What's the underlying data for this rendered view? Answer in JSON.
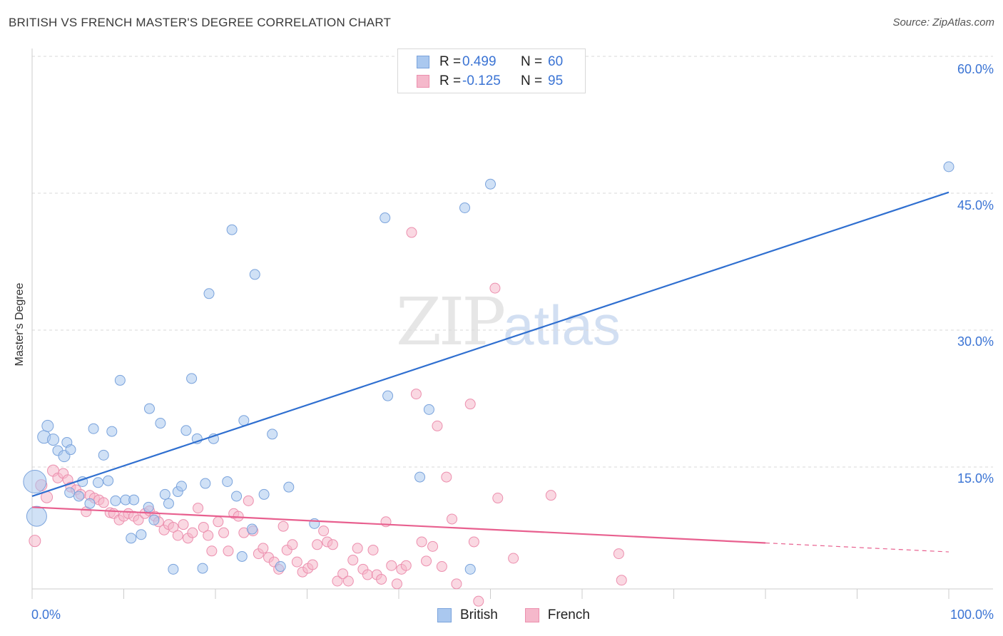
{
  "title": "BRITISH VS FRENCH MASTER'S DEGREE CORRELATION CHART",
  "source": "Source: ZipAtlas.com",
  "watermark": {
    "zip": "ZIP",
    "atlas": "atlas"
  },
  "legend": {
    "rows": [
      {
        "r_label": "R =",
        "r_value": "0.499",
        "n_label": "N =",
        "n_value": "60"
      },
      {
        "r_label": "R =",
        "r_value": "-0.125",
        "n_label": "N =",
        "n_value": "95"
      }
    ]
  },
  "bottom_legend": [
    "British",
    "French"
  ],
  "colors": {
    "british_fill": "#aac8ef",
    "british_stroke": "#7aa3dc",
    "british_line": "#2f6fd0",
    "french_fill": "#f5b8cb",
    "french_stroke": "#ec8fae",
    "french_line": "#e8608f",
    "grid": "#d9d9d9",
    "axis_text": "#3b74d4"
  },
  "chart_data": {
    "type": "scatter",
    "title": "BRITISH VS FRENCH MASTER'S DEGREE CORRELATION CHART",
    "xlabel": "",
    "ylabel": "Master's Degree",
    "xlim": [
      0,
      100
    ],
    "ylim": [
      0,
      65
    ],
    "x_tick_labels": [
      "0.0%",
      "100.0%"
    ],
    "y_ticks": [
      15,
      30,
      45,
      60
    ],
    "y_tick_labels": [
      "15.0%",
      "30.0%",
      "45.0%",
      "60.0%"
    ],
    "grid": true,
    "legend_position": "top-center",
    "series": [
      {
        "name": "British",
        "R": 0.499,
        "N": 60,
        "trend": {
          "x": [
            0,
            100
          ],
          "y": [
            11.8,
            45.1
          ],
          "dashed_from": null
        },
        "points": [
          [
            0.3,
            13.4,
            16
          ],
          [
            0.5,
            9.6,
            14
          ],
          [
            1.3,
            18.3,
            9
          ],
          [
            1.7,
            19.5,
            8
          ],
          [
            2.3,
            18.0,
            8
          ],
          [
            2.8,
            16.8,
            7
          ],
          [
            3.5,
            16.2,
            8
          ],
          [
            3.8,
            17.7,
            7
          ],
          [
            4.2,
            16.9,
            7
          ],
          [
            4.1,
            12.2,
            7
          ],
          [
            5.1,
            11.8,
            7
          ],
          [
            5.5,
            13.4,
            7
          ],
          [
            6.3,
            11.0,
            7
          ],
          [
            6.7,
            19.2,
            7
          ],
          [
            7.2,
            13.3,
            7
          ],
          [
            7.8,
            16.3,
            7
          ],
          [
            8.3,
            13.5,
            7
          ],
          [
            8.7,
            18.9,
            7
          ],
          [
            9.1,
            11.3,
            7
          ],
          [
            9.6,
            24.5,
            7
          ],
          [
            10.2,
            11.4,
            7
          ],
          [
            10.8,
            7.2,
            7
          ],
          [
            11.1,
            11.4,
            7
          ],
          [
            11.9,
            7.6,
            7
          ],
          [
            12.7,
            10.6,
            7
          ],
          [
            12.8,
            21.4,
            7
          ],
          [
            13.3,
            9.2,
            7
          ],
          [
            14.0,
            19.8,
            7
          ],
          [
            14.5,
            12.0,
            7
          ],
          [
            14.9,
            11.0,
            7
          ],
          [
            15.4,
            3.8,
            7
          ],
          [
            15.9,
            12.3,
            7
          ],
          [
            16.3,
            12.9,
            7
          ],
          [
            16.8,
            19.0,
            7
          ],
          [
            17.4,
            24.7,
            7
          ],
          [
            18.0,
            18.1,
            7
          ],
          [
            18.6,
            3.9,
            7
          ],
          [
            18.9,
            13.2,
            7
          ],
          [
            19.3,
            34.0,
            7
          ],
          [
            19.8,
            18.1,
            7
          ],
          [
            21.3,
            13.4,
            7
          ],
          [
            21.8,
            41.0,
            7
          ],
          [
            22.3,
            11.8,
            7
          ],
          [
            22.9,
            5.2,
            7
          ],
          [
            23.1,
            20.1,
            7
          ],
          [
            24.0,
            8.2,
            7
          ],
          [
            24.3,
            36.1,
            7
          ],
          [
            25.3,
            12.0,
            7
          ],
          [
            26.2,
            18.6,
            7
          ],
          [
            27.1,
            4.1,
            7
          ],
          [
            28.0,
            12.8,
            7
          ],
          [
            30.8,
            8.8,
            7
          ],
          [
            38.5,
            42.3,
            7
          ],
          [
            38.8,
            22.8,
            7
          ],
          [
            42.3,
            13.9,
            7
          ],
          [
            43.3,
            21.3,
            7
          ],
          [
            47.2,
            43.4,
            7
          ],
          [
            47.8,
            3.8,
            7
          ],
          [
            50.0,
            46.0,
            7
          ],
          [
            100.0,
            47.9,
            7
          ]
        ]
      },
      {
        "name": "French",
        "R": -0.125,
        "N": 95,
        "trend": {
          "x": [
            0,
            100
          ],
          "y": [
            10.6,
            5.7
          ],
          "dashed_from": 80
        },
        "points": [
          [
            0.3,
            6.9,
            8
          ],
          [
            1.0,
            13.0,
            8
          ],
          [
            1.6,
            11.7,
            8
          ],
          [
            2.3,
            14.6,
            8
          ],
          [
            2.8,
            13.8,
            7
          ],
          [
            3.4,
            14.3,
            7
          ],
          [
            3.9,
            13.6,
            7
          ],
          [
            4.2,
            12.8,
            7
          ],
          [
            4.8,
            12.5,
            7
          ],
          [
            5.3,
            12.0,
            7
          ],
          [
            5.9,
            10.1,
            7
          ],
          [
            6.3,
            11.9,
            7
          ],
          [
            6.8,
            11.6,
            7
          ],
          [
            7.3,
            11.4,
            7
          ],
          [
            7.8,
            11.1,
            7
          ],
          [
            8.5,
            10.0,
            7
          ],
          [
            8.9,
            9.9,
            7
          ],
          [
            9.5,
            9.2,
            7
          ],
          [
            10.0,
            9.6,
            7
          ],
          [
            10.5,
            9.9,
            7
          ],
          [
            11.1,
            9.6,
            7
          ],
          [
            11.6,
            9.2,
            7
          ],
          [
            12.3,
            9.9,
            7
          ],
          [
            12.8,
            10.2,
            7
          ],
          [
            13.4,
            9.6,
            7
          ],
          [
            13.8,
            9.0,
            7
          ],
          [
            14.4,
            8.1,
            7
          ],
          [
            14.9,
            8.7,
            7
          ],
          [
            15.4,
            8.4,
            7
          ],
          [
            15.9,
            7.5,
            7
          ],
          [
            16.5,
            8.7,
            7
          ],
          [
            17.0,
            7.2,
            7
          ],
          [
            17.5,
            7.8,
            7
          ],
          [
            18.1,
            10.5,
            7
          ],
          [
            18.7,
            8.4,
            7
          ],
          [
            19.2,
            7.5,
            7
          ],
          [
            19.6,
            5.8,
            7
          ],
          [
            20.3,
            9.0,
            7
          ],
          [
            20.9,
            7.8,
            7
          ],
          [
            21.4,
            5.8,
            7
          ],
          [
            22.0,
            9.9,
            7
          ],
          [
            22.5,
            9.6,
            7
          ],
          [
            23.1,
            7.8,
            7
          ],
          [
            23.6,
            11.3,
            7
          ],
          [
            24.1,
            8.0,
            7
          ],
          [
            24.7,
            5.5,
            7
          ],
          [
            25.2,
            6.1,
            7
          ],
          [
            25.8,
            5.1,
            7
          ],
          [
            26.4,
            4.6,
            7
          ],
          [
            26.9,
            3.8,
            7
          ],
          [
            27.4,
            8.5,
            7
          ],
          [
            27.8,
            5.9,
            7
          ],
          [
            28.4,
            6.5,
            7
          ],
          [
            28.9,
            4.6,
            7
          ],
          [
            29.5,
            3.5,
            7
          ],
          [
            30.1,
            3.9,
            7
          ],
          [
            30.6,
            4.3,
            7
          ],
          [
            31.1,
            6.5,
            7
          ],
          [
            31.8,
            8.0,
            7
          ],
          [
            32.2,
            6.8,
            7
          ],
          [
            32.8,
            6.5,
            7
          ],
          [
            33.3,
            2.5,
            7
          ],
          [
            33.9,
            3.3,
            7
          ],
          [
            34.5,
            2.5,
            7
          ],
          [
            35.0,
            4.8,
            7
          ],
          [
            35.5,
            6.1,
            7
          ],
          [
            36.1,
            3.8,
            7
          ],
          [
            36.6,
            3.2,
            7
          ],
          [
            37.2,
            5.9,
            7
          ],
          [
            37.6,
            3.2,
            7
          ],
          [
            38.1,
            2.7,
            7
          ],
          [
            38.6,
            9.0,
            7
          ],
          [
            39.2,
            4.2,
            7
          ],
          [
            39.8,
            2.2,
            7
          ],
          [
            40.3,
            3.8,
            7
          ],
          [
            40.8,
            4.2,
            7
          ],
          [
            41.4,
            40.7,
            7
          ],
          [
            41.9,
            23.0,
            7
          ],
          [
            42.5,
            6.8,
            7
          ],
          [
            43.0,
            4.7,
            7
          ],
          [
            43.7,
            6.3,
            7
          ],
          [
            44.2,
            19.5,
            7
          ],
          [
            44.7,
            4.1,
            7
          ],
          [
            45.2,
            13.9,
            7
          ],
          [
            45.8,
            9.3,
            7
          ],
          [
            46.3,
            2.2,
            7
          ],
          [
            47.8,
            21.9,
            7
          ],
          [
            48.2,
            6.8,
            7
          ],
          [
            48.7,
            0.3,
            7
          ],
          [
            50.5,
            34.6,
            7
          ],
          [
            50.8,
            11.6,
            7
          ],
          [
            52.5,
            5.0,
            7
          ],
          [
            56.6,
            11.9,
            7
          ],
          [
            64.0,
            5.5,
            7
          ],
          [
            64.3,
            2.6,
            7
          ]
        ]
      }
    ]
  }
}
